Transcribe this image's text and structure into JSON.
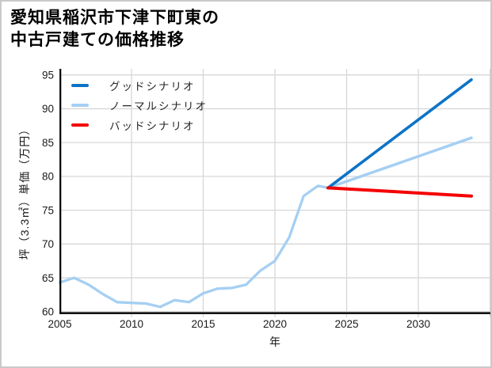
{
  "title": {
    "line1": "愛知県稲沢市下津下町東の",
    "line2": "中古戸建ての価格推移"
  },
  "colors": {
    "background": "#ffffff",
    "frame_border": "#c9c9c9",
    "grid": "#d7d7d7",
    "spine": "#000000",
    "tick_text": "#1a1a1a",
    "good": "#0d73c8",
    "normal": "#a5cff3",
    "bad": "#f40000"
  },
  "chart_data": {
    "type": "line",
    "title": "愛知県稲沢市下津下町東の中古戸建ての価格推移",
    "xlabel": "年",
    "ylabel": "坪（3.3㎡）単価（万円）",
    "xlim": [
      2005,
      2035
    ],
    "ylim": [
      59.8,
      95.9
    ],
    "xticks": [
      2005,
      2010,
      2015,
      2020,
      2025,
      2030
    ],
    "yticks": [
      60,
      65,
      70,
      75,
      80,
      85,
      90,
      95
    ],
    "xgrid": [
      2010,
      2015,
      2020,
      2025,
      2030,
      2035
    ],
    "grid": true,
    "legend_position": "upper-left",
    "legend": [
      {
        "label": "グッドシナリオ",
        "color": "#0d73c8"
      },
      {
        "label": "ノーマルシナリオ",
        "color": "#a5cff3"
      },
      {
        "label": "バッドシナリオ",
        "color": "#f40000"
      }
    ],
    "series": [
      {
        "id": "history-normal",
        "name": "ノーマルシナリオ",
        "segment": "history",
        "color": "#a5cff3",
        "width": 3.3,
        "x": [
          2005,
          2006,
          2007,
          2008,
          2009,
          2010,
          2011,
          2012,
          2013,
          2014,
          2015,
          2016,
          2017,
          2018,
          2019,
          2020,
          2021,
          2022,
          2023,
          2023.7
        ],
        "y": [
          64.3,
          65.0,
          64.0,
          62.6,
          61.4,
          61.3,
          61.2,
          60.7,
          61.7,
          61.4,
          62.7,
          63.4,
          63.5,
          64.0,
          66.1,
          67.5,
          71.0,
          77.1,
          78.6,
          78.3
        ]
      },
      {
        "id": "forecast-normal",
        "name": "ノーマルシナリオ",
        "segment": "forecast",
        "color": "#a5cff3",
        "width": 3.5,
        "x": [
          2023.7,
          2033.7
        ],
        "y": [
          78.3,
          85.7
        ]
      },
      {
        "id": "forecast-good",
        "name": "グッドシナリオ",
        "segment": "forecast",
        "color": "#0d73c8",
        "width": 3.6,
        "x": [
          2023.7,
          2033.7
        ],
        "y": [
          78.3,
          94.3
        ]
      },
      {
        "id": "forecast-bad",
        "name": "バッドシナリオ",
        "segment": "forecast",
        "color": "#f40000",
        "width": 4.0,
        "x": [
          2023.7,
          2033.7
        ],
        "y": [
          78.3,
          77.1
        ]
      }
    ]
  }
}
